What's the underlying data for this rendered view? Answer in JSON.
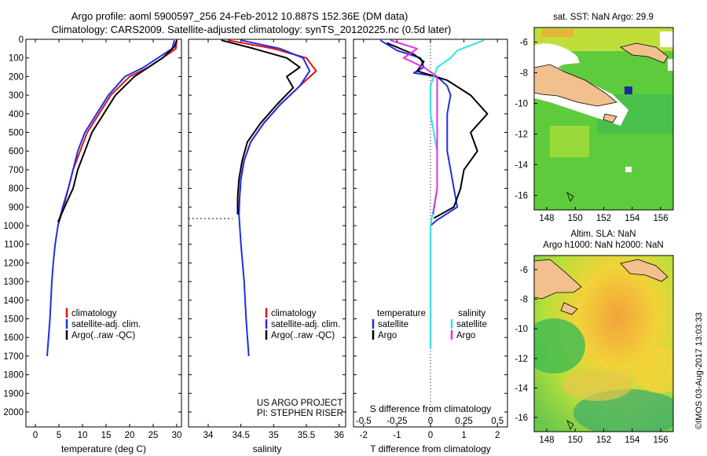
{
  "title": {
    "line1": "Argo profile: aoml 5900597_256 24-Feb-2012 10.887S 152.36E (DM data)",
    "line2": "Climatology: CARS2009. Satellite-adjusted climatology: synTS_20120225.nc (0.5d later)"
  },
  "colors": {
    "climatology": "#e3120b",
    "satellite": "#1f2ee8",
    "argo": "#000000",
    "satellite_s": "#2fe3e6",
    "argo_s": "#e62ee6",
    "land": "#f2c08c"
  },
  "chart_data": [
    {
      "type": "line",
      "id": "temperature",
      "xlabel": "temperature (deg C)",
      "ylabel": "",
      "xlim": [
        -2,
        31
      ],
      "ylim": [
        2080,
        0
      ],
      "xticks": [
        0,
        5,
        10,
        15,
        20,
        25,
        30
      ],
      "yticks": [
        0,
        100,
        200,
        300,
        400,
        500,
        600,
        700,
        800,
        900,
        1000,
        1100,
        1200,
        1300,
        1400,
        1500,
        1600,
        1700,
        1800,
        1900,
        2000
      ],
      "legend": {
        "position": "lower-right",
        "entries": [
          "climatology",
          "satellite-adj. clim.",
          "Argo(..raw -QC)"
        ]
      },
      "series": [
        {
          "name": "climatology",
          "color_key": "climatology",
          "points": [
            [
              30,
              5
            ],
            [
              29.8,
              50
            ],
            [
              27,
              100
            ],
            [
              24,
              150
            ],
            [
              20,
              200
            ],
            [
              16,
              300
            ],
            [
              13.5,
              400
            ],
            [
              11,
              500
            ],
            [
              9.5,
              600
            ],
            [
              8,
              700
            ],
            [
              7,
              800
            ],
            [
              6,
              900
            ],
            [
              4.8,
              1000
            ]
          ]
        },
        {
          "name": "satellite-adj. clim.",
          "color_key": "satellite",
          "points": [
            [
              29.5,
              5
            ],
            [
              29,
              50
            ],
            [
              26,
              100
            ],
            [
              23,
              150
            ],
            [
              19,
              200
            ],
            [
              15.5,
              300
            ],
            [
              13,
              400
            ],
            [
              10.5,
              500
            ],
            [
              9,
              600
            ],
            [
              8,
              700
            ],
            [
              7,
              800
            ],
            [
              5.8,
              900
            ],
            [
              4.8,
              1000
            ],
            [
              4.2,
              1100
            ],
            [
              3.8,
              1200
            ],
            [
              3.5,
              1300
            ],
            [
              3.3,
              1400
            ],
            [
              3.1,
              1500
            ],
            [
              2.8,
              1600
            ],
            [
              2.5,
              1700
            ]
          ]
        },
        {
          "name": "Argo(..raw -QC)",
          "color_key": "argo",
          "points": [
            [
              30,
              5
            ],
            [
              29.5,
              40
            ],
            [
              27,
              100
            ],
            [
              24,
              150
            ],
            [
              21,
              200
            ],
            [
              17,
              300
            ],
            [
              14.5,
              400
            ],
            [
              12,
              500
            ],
            [
              10.5,
              600
            ],
            [
              9,
              700
            ],
            [
              8,
              800
            ],
            [
              6.2,
              900
            ],
            [
              4.8,
              980
            ]
          ]
        }
      ]
    },
    {
      "type": "line",
      "id": "salinity",
      "xlabel": "salinity",
      "ylabel": "",
      "xlim": [
        33.7,
        36.1
      ],
      "ylim": [
        2080,
        0
      ],
      "xticks": [
        34,
        34.5,
        35,
        35.5,
        36
      ],
      "legend": {
        "position": "lower-right",
        "entries": [
          "climatology",
          "satellite-adj. clim.",
          "Argo(..raw -QC)"
        ]
      },
      "series": [
        {
          "name": "climatology",
          "color_key": "climatology",
          "points": [
            [
              34.3,
              5
            ],
            [
              35,
              50
            ],
            [
              35.5,
              100
            ],
            [
              35.65,
              170
            ],
            [
              35.4,
              250
            ],
            [
              35.1,
              350
            ],
            [
              34.85,
              450
            ],
            [
              34.65,
              550
            ],
            [
              34.55,
              650
            ],
            [
              34.5,
              750
            ],
            [
              34.48,
              850
            ],
            [
              34.47,
              940
            ]
          ]
        },
        {
          "name": "satellite-adj. clim.",
          "color_key": "satellite",
          "points": [
            [
              34.5,
              5
            ],
            [
              35.1,
              50
            ],
            [
              35.45,
              100
            ],
            [
              35.55,
              170
            ],
            [
              35.4,
              250
            ],
            [
              35.1,
              350
            ],
            [
              34.85,
              450
            ],
            [
              34.65,
              550
            ],
            [
              34.55,
              650
            ],
            [
              34.5,
              750
            ],
            [
              34.48,
              850
            ],
            [
              34.47,
              940
            ],
            [
              34.5,
              1100
            ],
            [
              34.55,
              1300
            ],
            [
              34.58,
              1500
            ],
            [
              34.62,
              1700
            ]
          ]
        },
        {
          "name": "Argo(..raw -QC)",
          "color_key": "argo",
          "points": [
            [
              34.2,
              5
            ],
            [
              34.7,
              50
            ],
            [
              35.2,
              100
            ],
            [
              35.4,
              150
            ],
            [
              35.2,
              200
            ],
            [
              35.3,
              260
            ],
            [
              35.05,
              350
            ],
            [
              34.8,
              450
            ],
            [
              34.6,
              550
            ],
            [
              34.52,
              650
            ],
            [
              34.47,
              750
            ],
            [
              34.45,
              850
            ],
            [
              34.45,
              940
            ]
          ]
        }
      ],
      "annotations": [
        "US ARGO PROJECT",
        "PI: STEPHEN RISER"
      ]
    },
    {
      "type": "line",
      "id": "difference",
      "xlabel": "T difference from climatology",
      "xlabel2": "S difference from climatology",
      "xlim": [
        -2.3,
        2.3
      ],
      "xlim_s": [
        -0.575,
        0.575
      ],
      "ylim": [
        2080,
        0
      ],
      "xticks": [
        -2,
        -1,
        0,
        1,
        2
      ],
      "xticks_s": [
        "-0.5",
        "-0.25",
        "0",
        "0.25",
        "0.5"
      ],
      "legend": {
        "temperature_header": "temperature",
        "salinity_header": "salinity",
        "entries": [
          "satellite",
          "Argo",
          "satellite",
          "Argo"
        ]
      },
      "series": [
        {
          "name": "T satellite",
          "color_key": "satellite",
          "points": [
            [
              -1.5,
              5
            ],
            [
              -1,
              60
            ],
            [
              -0.3,
              100
            ],
            [
              -0.2,
              150
            ],
            [
              -0.5,
              180
            ],
            [
              0.2,
              200
            ],
            [
              0.5,
              250
            ],
            [
              0.6,
              300
            ],
            [
              0.5,
              400
            ],
            [
              0.5,
              600
            ],
            [
              0.6,
              700
            ],
            [
              0.7,
              800
            ],
            [
              0.8,
              900
            ],
            [
              0.2,
              970
            ],
            [
              0,
              1000
            ]
          ]
        },
        {
          "name": "T Argo",
          "color_key": "argo",
          "points": [
            [
              -1.3,
              20
            ],
            [
              -0.5,
              80
            ],
            [
              -0.2,
              120
            ],
            [
              -0.4,
              170
            ],
            [
              0.5,
              220
            ],
            [
              1.2,
              300
            ],
            [
              1.7,
              400
            ],
            [
              1.2,
              500
            ],
            [
              1.4,
              600
            ],
            [
              1.0,
              700
            ],
            [
              0.9,
              800
            ],
            [
              0.7,
              900
            ],
            [
              0.1,
              960
            ]
          ]
        },
        {
          "name": "S satellite",
          "color_key": "satellite_s",
          "points": [
            [
              0.4,
              5
            ],
            [
              0.2,
              60
            ],
            [
              0.15,
              100
            ],
            [
              0.05,
              150
            ],
            [
              0,
              250
            ],
            [
              0,
              400
            ],
            [
              0.05,
              600
            ],
            [
              0.05,
              800
            ],
            [
              0,
              1000
            ],
            [
              0,
              1300
            ],
            [
              0,
              1660
            ]
          ]
        },
        {
          "name": "S Argo",
          "color_key": "argo_s",
          "points": [
            [
              -0.3,
              5
            ],
            [
              -0.1,
              50
            ],
            [
              -0.2,
              100
            ],
            [
              -0.05,
              150
            ],
            [
              0.05,
              200
            ],
            [
              0.05,
              400
            ],
            [
              0.05,
              600
            ],
            [
              0.05,
              800
            ],
            [
              0.02,
              940
            ]
          ]
        }
      ]
    }
  ],
  "maps": [
    {
      "id": "sst-map",
      "title": "sat. SST: NaN Argo: 29.9",
      "xticks": [
        "148",
        "150",
        "152",
        "154",
        "156"
      ],
      "yticks": [
        "-6",
        "-8",
        "-10",
        "-12",
        "-14",
        "-16"
      ]
    },
    {
      "id": "sla-map",
      "title1": "Altim. SLA: NaN",
      "title2": "Argo h1000: NaN h2000: NaN",
      "xticks": [
        "148",
        "150",
        "152",
        "154",
        "156"
      ],
      "yticks": [
        "-6",
        "-8",
        "-10",
        "-12",
        "-14",
        "-16"
      ]
    }
  ],
  "credit": "©IMOS 03-Aug-2017 13:03:33"
}
